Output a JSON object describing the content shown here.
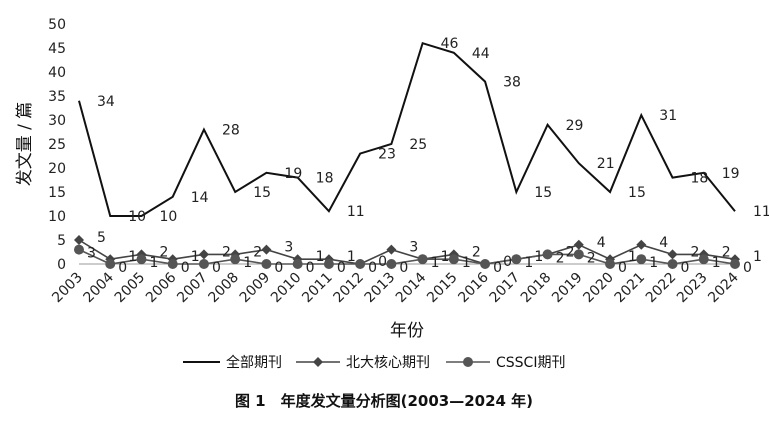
{
  "chart_data": {
    "type": "line",
    "caption": "图 1　年度发文量分析图(2003—2024 年)",
    "xlabel": "年份",
    "ylabel": "发文量 / 篇",
    "ylim": [
      0,
      50
    ],
    "yticks": [
      0,
      5,
      10,
      15,
      20,
      25,
      30,
      35,
      40,
      45,
      50
    ],
    "grid": false,
    "legend_position": "bottom",
    "x": [
      "2003",
      "2004",
      "2005",
      "2006",
      "2007",
      "2008",
      "2009",
      "2010",
      "2011",
      "2012",
      "2013",
      "2014",
      "2015",
      "2016",
      "2017",
      "2018",
      "2019",
      "2020",
      "2021",
      "2022",
      "2023",
      "2024"
    ],
    "series": [
      {
        "name": "全部期刊",
        "marker": "none",
        "color": "#111111",
        "values": [
          34,
          10,
          10,
          14,
          28,
          15,
          19,
          18,
          11,
          23,
          25,
          46,
          44,
          38,
          15,
          29,
          21,
          15,
          31,
          18,
          19,
          11
        ]
      },
      {
        "name": "北大核心期刊",
        "marker": "diamond",
        "color": "#444444",
        "values": [
          5,
          1,
          2,
          1,
          2,
          2,
          3,
          1,
          1,
          0,
          3,
          1,
          2,
          0,
          1,
          2,
          4,
          1,
          4,
          2,
          2,
          1
        ]
      },
      {
        "name": "CSSCI期刊",
        "marker": "circle",
        "color": "#555555",
        "values": [
          3,
          0,
          1,
          0,
          0,
          1,
          0,
          0,
          0,
          0,
          0,
          1,
          1,
          0,
          1,
          2,
          2,
          0,
          1,
          0,
          1,
          0
        ]
      }
    ]
  }
}
